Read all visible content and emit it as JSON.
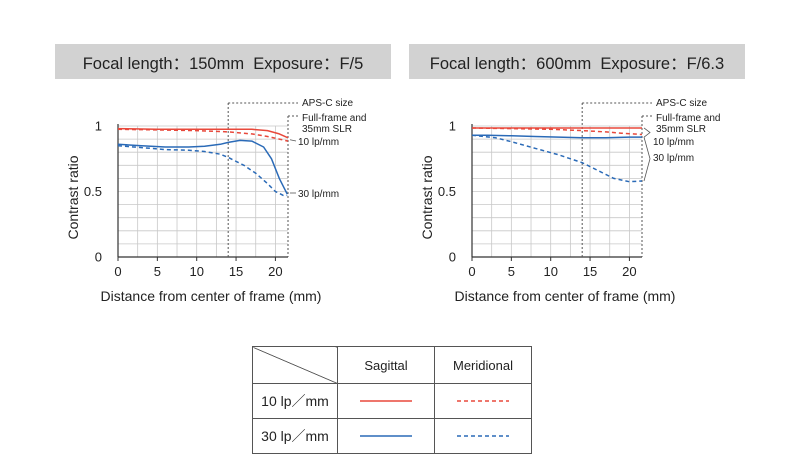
{
  "charts": [
    {
      "header": "Focal length：150mm  Exposure：F/5"
    },
    {
      "header": "Focal length：600mm  Exposure：F/6.3"
    }
  ],
  "annotations": {
    "apsc": "APS-C size",
    "fullframe_line1": "Full-frame and",
    "fullframe_line2": "35mm SLR",
    "lp10": "10 lp/mm",
    "lp30": "30 lp/mm"
  },
  "legend": {
    "col_sagittal": "Sagittal",
    "col_meridional": "Meridional",
    "row_10": "10 lp／mm",
    "row_30": "30 lp／mm"
  },
  "colors": {
    "lp10": "#e8483b",
    "lp30": "#2a6ab7",
    "grid": "#c8c8c8",
    "axis": "#333333"
  },
  "chart_data": [
    {
      "type": "line",
      "title": "Focal length：150mm  Exposure：F/5",
      "xlabel": "Distance from center of frame (mm)",
      "ylabel": "Contrast ratio",
      "xlim": [
        0,
        21.6
      ],
      "ylim": [
        0,
        1
      ],
      "xticks": [
        0,
        5,
        10,
        15,
        20
      ],
      "yticks": [
        0,
        0.5,
        1
      ],
      "ytick_labels": [
        "0",
        "0.5",
        "1"
      ],
      "apsc_limit": 14,
      "grid": true,
      "series": [
        {
          "name": "10 lp/mm Sagittal",
          "style": "solid",
          "color": "#e8483b",
          "x": [
            0,
            5,
            10,
            14,
            17,
            19,
            20.5,
            21.6
          ],
          "y": [
            0.98,
            0.975,
            0.975,
            0.975,
            0.975,
            0.965,
            0.94,
            0.91
          ]
        },
        {
          "name": "10 lp/mm Meridional",
          "style": "dashed",
          "color": "#e8483b",
          "x": [
            0,
            5,
            10,
            14,
            17,
            19,
            20.5,
            21.6
          ],
          "y": [
            0.975,
            0.97,
            0.965,
            0.955,
            0.94,
            0.92,
            0.9,
            0.885
          ]
        },
        {
          "name": "30 lp/mm Sagittal",
          "style": "solid",
          "color": "#2a6ab7",
          "x": [
            0,
            3,
            6,
            9,
            11,
            13,
            14,
            15.5,
            17,
            18.5,
            19.5,
            20.5,
            21.5
          ],
          "y": [
            0.86,
            0.85,
            0.84,
            0.84,
            0.845,
            0.86,
            0.875,
            0.89,
            0.885,
            0.84,
            0.75,
            0.6,
            0.48
          ]
        },
        {
          "name": "30 lp/mm Meridional",
          "style": "dashed",
          "color": "#2a6ab7",
          "x": [
            0,
            3,
            6,
            9,
            11,
            13,
            14,
            16,
            17.5,
            19,
            20,
            21,
            21.5
          ],
          "y": [
            0.85,
            0.835,
            0.82,
            0.815,
            0.805,
            0.785,
            0.76,
            0.7,
            0.64,
            0.56,
            0.5,
            0.47,
            0.47
          ]
        }
      ]
    },
    {
      "type": "line",
      "title": "Focal length：600mm  Exposure：F/6.3",
      "xlabel": "Distance from center of frame (mm)",
      "ylabel": "Contrast ratio",
      "xlim": [
        0,
        21.6
      ],
      "ylim": [
        0,
        1
      ],
      "xticks": [
        0,
        5,
        10,
        15,
        20
      ],
      "yticks": [
        0,
        0.5,
        1
      ],
      "ytick_labels": [
        "0",
        "0.5",
        "1"
      ],
      "apsc_limit": 14,
      "grid": true,
      "series": [
        {
          "name": "10 lp/mm Sagittal",
          "style": "solid",
          "color": "#e8483b",
          "x": [
            0,
            5,
            10,
            15,
            21.6
          ],
          "y": [
            0.985,
            0.985,
            0.985,
            0.985,
            0.985
          ]
        },
        {
          "name": "10 lp/mm Meridional",
          "style": "dashed",
          "color": "#e8483b",
          "x": [
            0,
            5,
            10,
            14,
            17,
            19,
            21.6
          ],
          "y": [
            0.985,
            0.98,
            0.975,
            0.965,
            0.955,
            0.945,
            0.935
          ]
        },
        {
          "name": "30 lp/mm Sagittal",
          "style": "solid",
          "color": "#2a6ab7",
          "x": [
            0,
            2,
            5,
            8,
            11,
            14,
            17,
            20,
            21.6
          ],
          "y": [
            0.93,
            0.93,
            0.925,
            0.92,
            0.915,
            0.91,
            0.91,
            0.915,
            0.915
          ]
        },
        {
          "name": "30 lp/mm Meridional",
          "style": "dashed",
          "color": "#2a6ab7",
          "x": [
            0,
            3,
            5,
            8,
            11,
            14,
            16,
            18,
            20,
            21.6
          ],
          "y": [
            0.93,
            0.91,
            0.88,
            0.83,
            0.78,
            0.72,
            0.66,
            0.6,
            0.575,
            0.58
          ]
        }
      ]
    }
  ]
}
